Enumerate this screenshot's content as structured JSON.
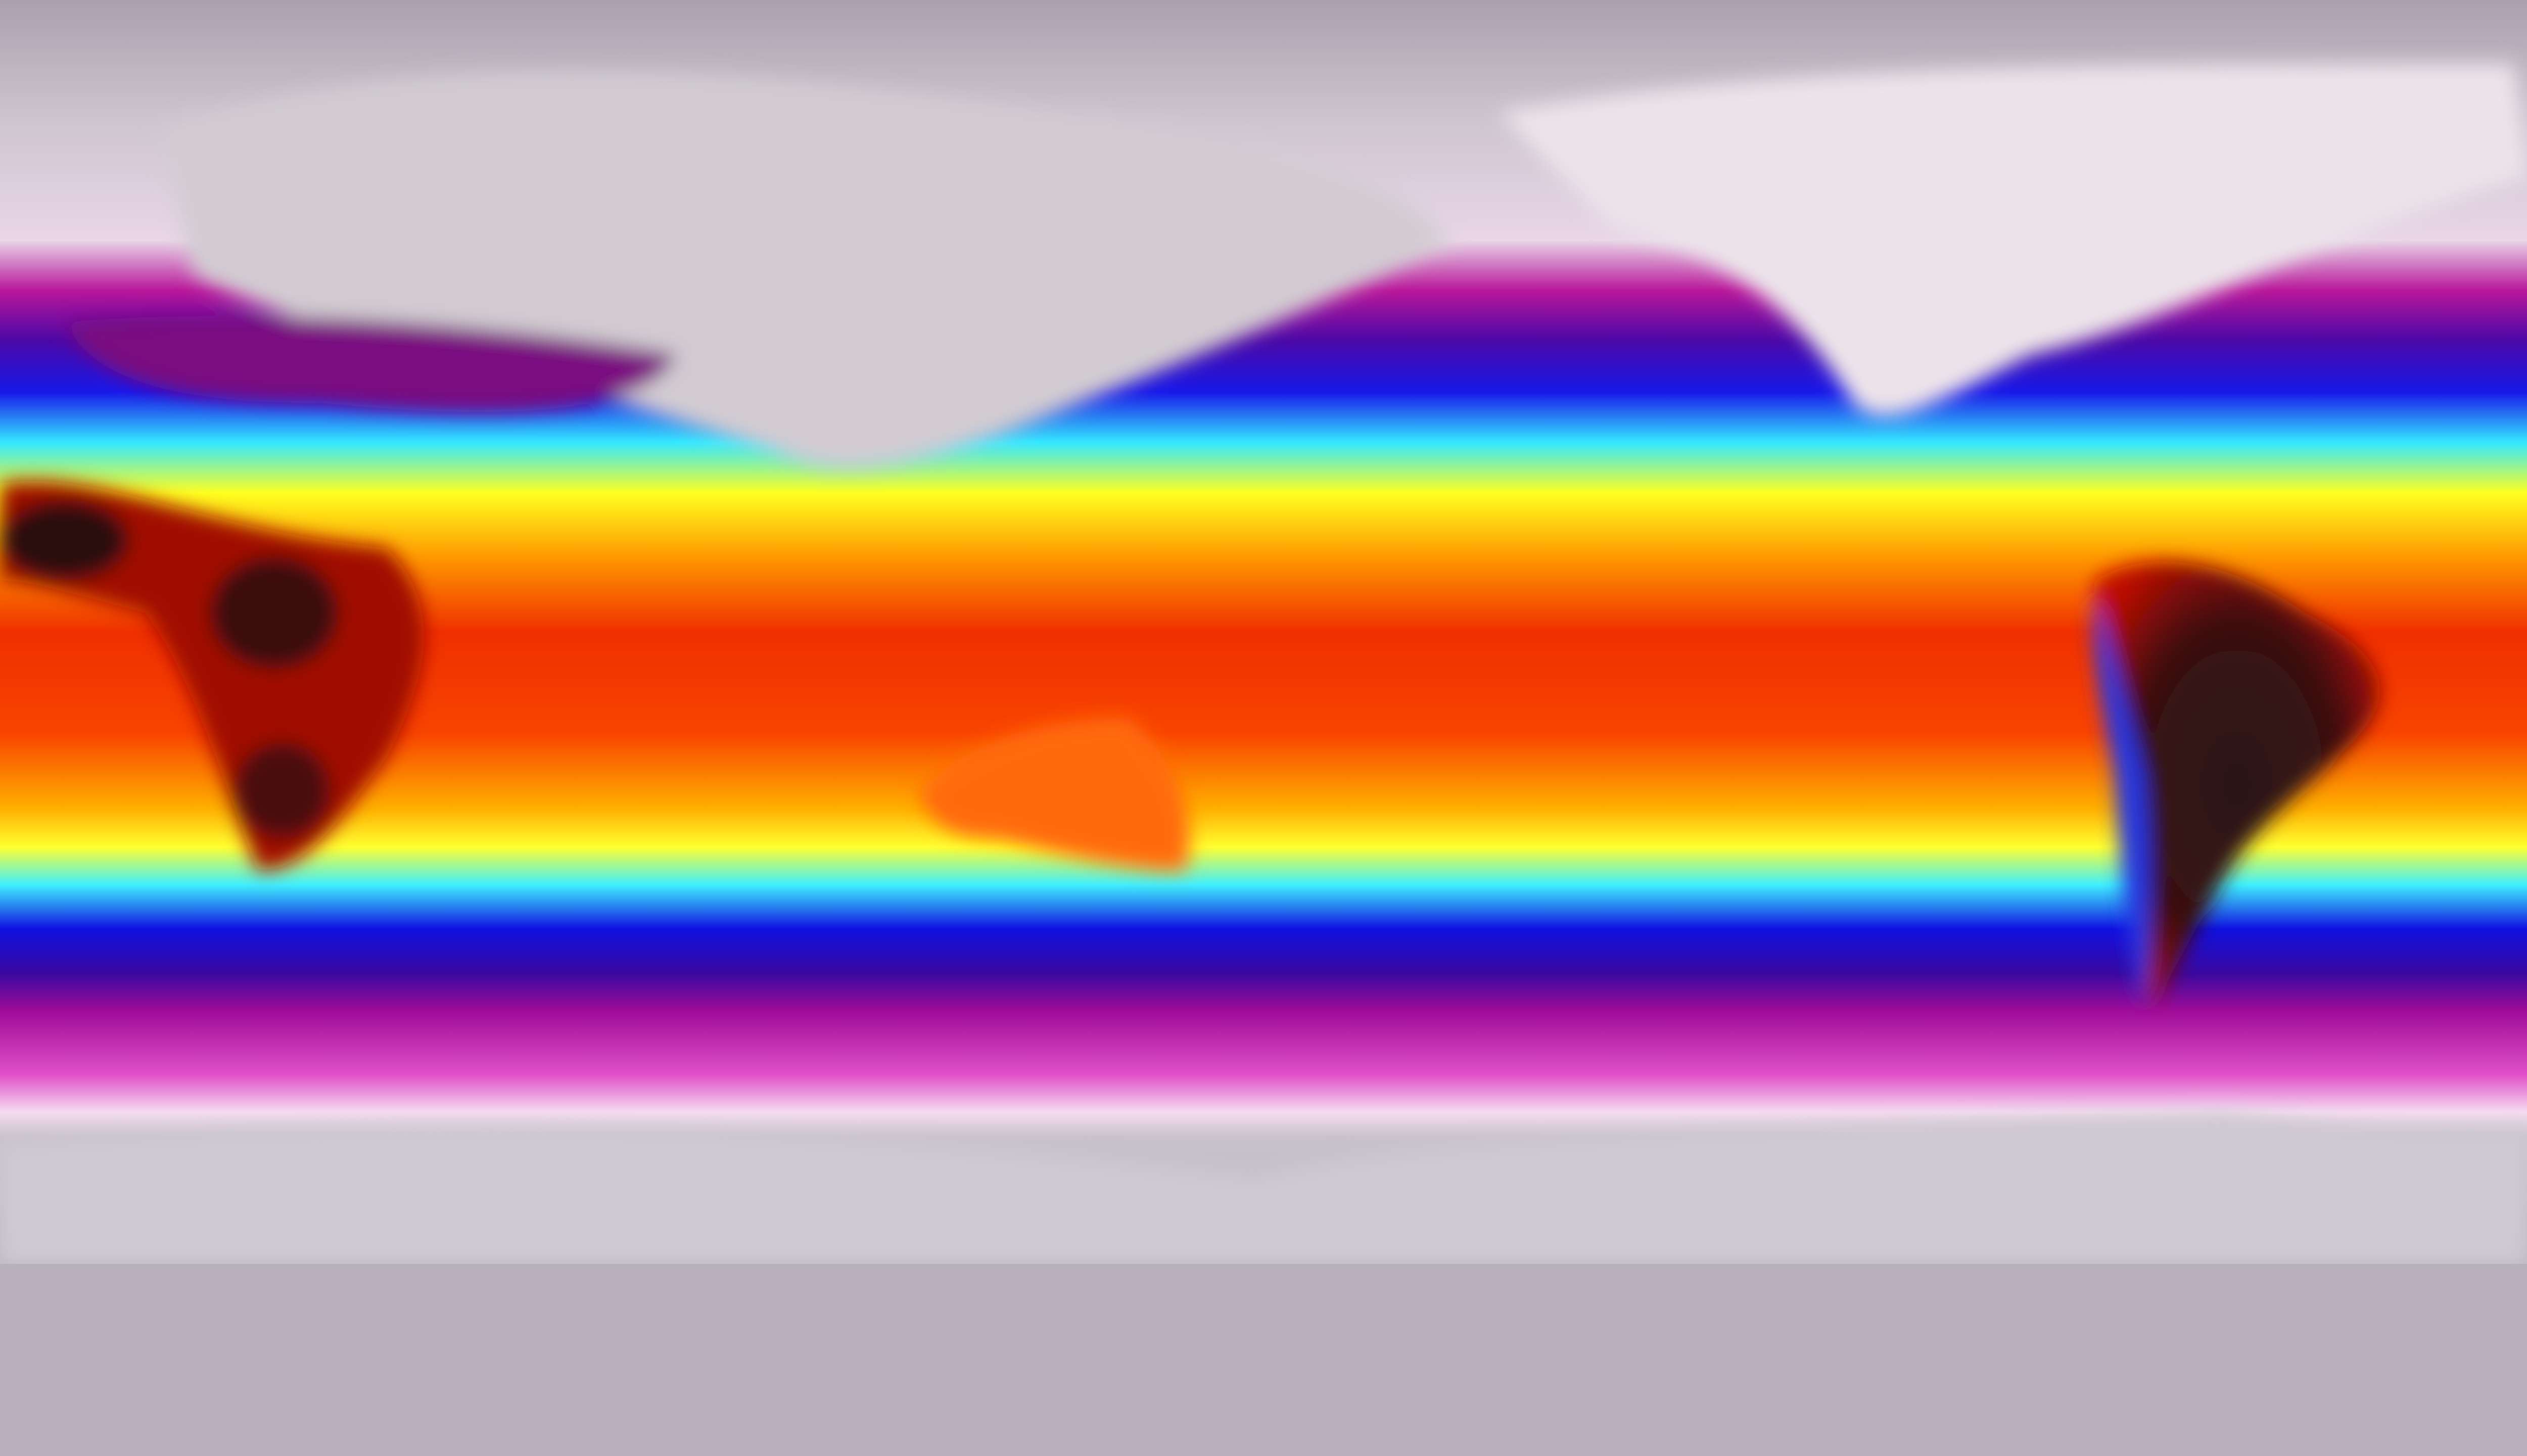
{
  "map": {
    "projection": "equirectangular",
    "variable": "temperature",
    "colors": {
      "polar": "#b9b3bd",
      "cold_white": "#f2e6f0",
      "magenta": "#c0139e",
      "purple": "#5a0aa8",
      "blue": "#1010e0",
      "cyan": "#30f0ff",
      "yellow": "#ffff10",
      "orange": "#ff9000",
      "red": "#ee2a00",
      "hot_dark": "#2a1414"
    }
  }
}
